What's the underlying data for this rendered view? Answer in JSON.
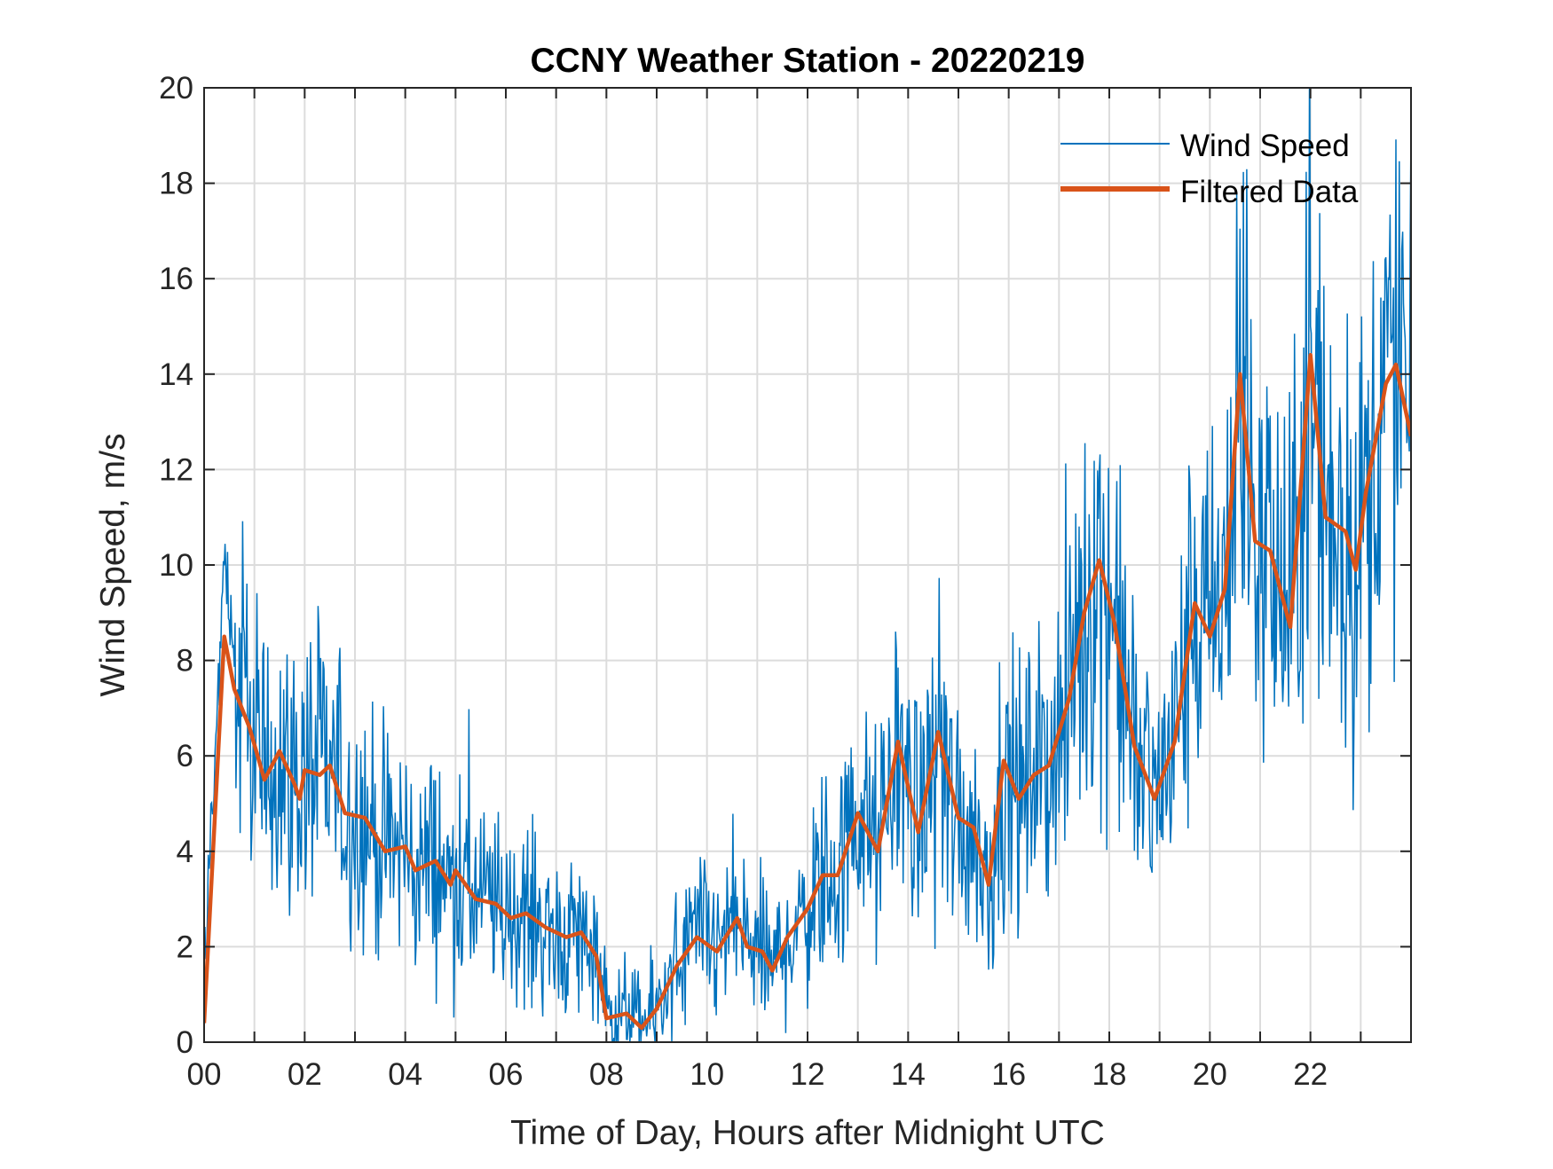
{
  "chart_data": {
    "type": "line",
    "title": "CCNY Weather Station - 20220219",
    "xlabel": "Time of Day, Hours after Midnight UTC",
    "ylabel": "Wind Speed, m/s",
    "xlim": [
      0,
      24
    ],
    "ylim": [
      0,
      20
    ],
    "xticks": [
      0,
      2,
      4,
      6,
      8,
      10,
      12,
      14,
      16,
      18,
      20,
      22
    ],
    "xtick_labels": [
      "00",
      "02",
      "04",
      "06",
      "08",
      "10",
      "12",
      "14",
      "16",
      "18",
      "20",
      "22"
    ],
    "yticks": [
      0,
      2,
      4,
      6,
      8,
      10,
      12,
      14,
      16,
      18,
      20
    ],
    "ytick_labels": [
      "0",
      "2",
      "4",
      "6",
      "8",
      "10",
      "12",
      "14",
      "16",
      "18",
      "20"
    ],
    "grid": true,
    "legend_position": "top-right",
    "series": [
      {
        "name": "Wind Speed",
        "color": "#0072BD",
        "note_noise_amplitude": "raw samples scatter around the filtered curve",
        "samples_per_hour": 60
      },
      {
        "name": "Filtered Data",
        "color": "#D95319",
        "points": [
          [
            0,
            0.4
          ],
          [
            0.4,
            8.5
          ],
          [
            0.6,
            7.4
          ],
          [
            0.9,
            6.6
          ],
          [
            1.2,
            5.5
          ],
          [
            1.5,
            6.1
          ],
          [
            1.8,
            5.4
          ],
          [
            1.9,
            5.1
          ],
          [
            2.0,
            5.7
          ],
          [
            2.3,
            5.6
          ],
          [
            2.5,
            5.8
          ],
          [
            2.8,
            4.8
          ],
          [
            3.2,
            4.7
          ],
          [
            3.6,
            4.0
          ],
          [
            4.0,
            4.1
          ],
          [
            4.2,
            3.6
          ],
          [
            4.6,
            3.8
          ],
          [
            4.9,
            3.3
          ],
          [
            5.0,
            3.6
          ],
          [
            5.4,
            3.0
          ],
          [
            5.8,
            2.9
          ],
          [
            6.1,
            2.6
          ],
          [
            6.4,
            2.7
          ],
          [
            6.8,
            2.4
          ],
          [
            7.2,
            2.2
          ],
          [
            7.5,
            2.3
          ],
          [
            7.8,
            1.8
          ],
          [
            8.0,
            0.5
          ],
          [
            8.4,
            0.6
          ],
          [
            8.7,
            0.3
          ],
          [
            9.0,
            0.7
          ],
          [
            9.4,
            1.6
          ],
          [
            9.8,
            2.2
          ],
          [
            10.2,
            1.9
          ],
          [
            10.6,
            2.6
          ],
          [
            10.8,
            2.0
          ],
          [
            11.1,
            1.9
          ],
          [
            11.3,
            1.5
          ],
          [
            11.6,
            2.2
          ],
          [
            12.0,
            2.8
          ],
          [
            12.3,
            3.5
          ],
          [
            12.6,
            3.5
          ],
          [
            13.0,
            4.8
          ],
          [
            13.4,
            4.0
          ],
          [
            13.8,
            6.3
          ],
          [
            14.2,
            4.4
          ],
          [
            14.6,
            6.5
          ],
          [
            15.0,
            4.7
          ],
          [
            15.3,
            4.5
          ],
          [
            15.6,
            3.3
          ],
          [
            15.9,
            5.9
          ],
          [
            16.2,
            5.1
          ],
          [
            16.5,
            5.6
          ],
          [
            16.8,
            5.8
          ],
          [
            17.2,
            7.2
          ],
          [
            17.5,
            9.0
          ],
          [
            17.8,
            10.1
          ],
          [
            18.1,
            8.8
          ],
          [
            18.5,
            6.2
          ],
          [
            18.9,
            5.1
          ],
          [
            19.3,
            6.3
          ],
          [
            19.7,
            9.2
          ],
          [
            20.0,
            8.5
          ],
          [
            20.3,
            9.5
          ],
          [
            20.6,
            14.0
          ],
          [
            20.9,
            10.5
          ],
          [
            21.2,
            10.3
          ],
          [
            21.6,
            8.7
          ],
          [
            22.0,
            14.4
          ],
          [
            22.3,
            11.0
          ],
          [
            22.7,
            10.7
          ],
          [
            22.9,
            9.9
          ],
          [
            23.1,
            11.5
          ],
          [
            23.5,
            13.8
          ],
          [
            23.7,
            14.2
          ],
          [
            24.0,
            12.7
          ]
        ]
      }
    ]
  }
}
